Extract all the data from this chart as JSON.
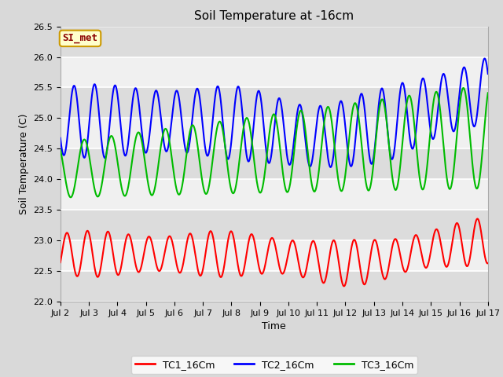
{
  "title": "Soil Temperature at -16cm",
  "xlabel": "Time",
  "ylabel": "Soil Temperature (C)",
  "ylim": [
    22.0,
    26.5
  ],
  "xlim_days": [
    2,
    17
  ],
  "x_tick_labels": [
    "Jul 2",
    "Jul 3",
    "Jul 4",
    "Jul 5",
    "Jul 6",
    "Jul 7",
    "Jul 8",
    "Jul 9",
    "Jul 10",
    "Jul 11",
    "Jul 12",
    "Jul 13",
    "Jul 14",
    "Jul 15",
    "Jul 16",
    "Jul 17"
  ],
  "x_tick_positions": [
    2,
    3,
    4,
    5,
    6,
    7,
    8,
    9,
    10,
    11,
    12,
    13,
    14,
    15,
    16,
    17
  ],
  "color_tc1": "#ff0000",
  "color_tc2": "#0000ff",
  "color_tc3": "#00bb00",
  "legend_labels": [
    "TC1_16Cm",
    "TC2_16Cm",
    "TC3_16Cm"
  ],
  "annotation_text": "SI_met",
  "annotation_bg": "#ffffcc",
  "annotation_border": "#cc9900",
  "annotation_fg": "#8b0000",
  "fig_bg": "#d9d9d9",
  "plot_bg_light": "#f0f0f0",
  "plot_bg_dark": "#dcdcdc",
  "grid_color": "#ffffff",
  "title_fontsize": 11,
  "axis_fontsize": 9,
  "tick_fontsize": 8,
  "linewidth": 1.5
}
